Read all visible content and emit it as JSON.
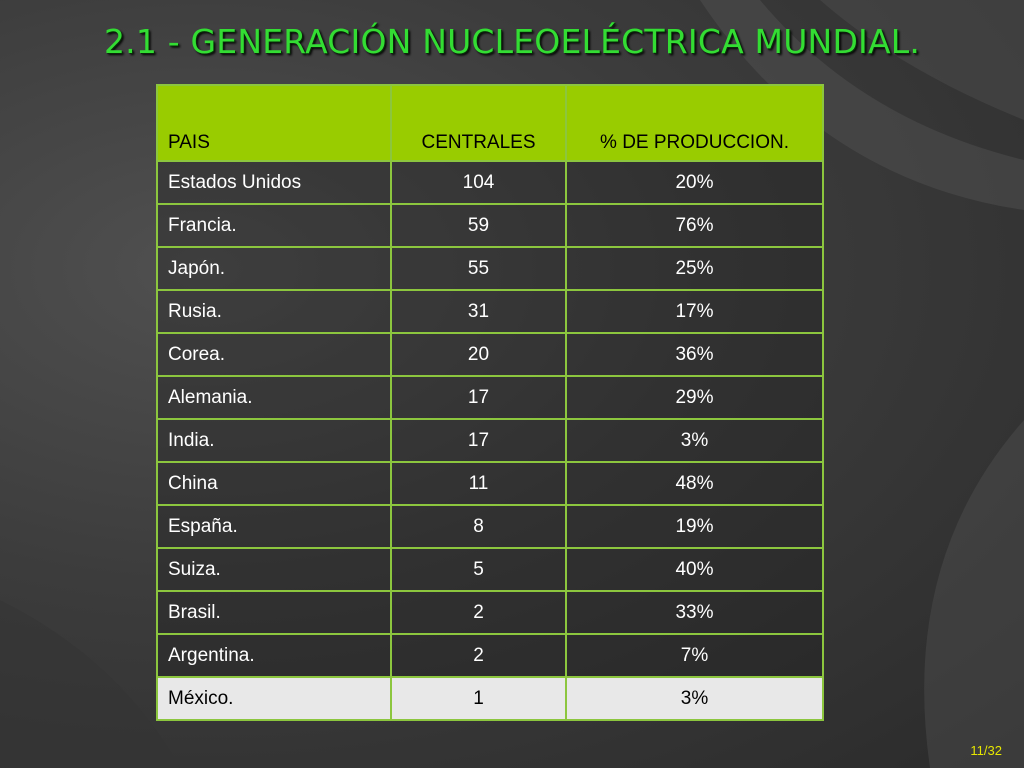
{
  "slide": {
    "title": "2.1 - GENERACIÓN NUCLEOELÉCTRICA MUNDIAL.",
    "page_number": "11/32"
  },
  "table": {
    "headers": {
      "pais": "PAIS",
      "centrales": "CENTRALES",
      "produccion": "% DE PRODUCCION."
    },
    "rows": [
      {
        "pais": "Estados Unidos",
        "centrales": "104",
        "produccion": "20%"
      },
      {
        "pais": "Francia.",
        "centrales": "59",
        "produccion": "76%"
      },
      {
        "pais": "Japón.",
        "centrales": "55",
        "produccion": "25%"
      },
      {
        "pais": "Rusia.",
        "centrales": "31",
        "produccion": "17%"
      },
      {
        "pais": "Corea.",
        "centrales": "20",
        "produccion": "36%"
      },
      {
        "pais": "Alemania.",
        "centrales": "17",
        "produccion": "29%"
      },
      {
        "pais": "India.",
        "centrales": "17",
        "produccion": "3%"
      },
      {
        "pais": "China",
        "centrales": "11",
        "produccion": "48%"
      },
      {
        "pais": "España.",
        "centrales": "8",
        "produccion": "19%"
      },
      {
        "pais": "Suiza.",
        "centrales": "5",
        "produccion": "40%"
      },
      {
        "pais": "Brasil.",
        "centrales": "2",
        "produccion": "33%"
      },
      {
        "pais": "Argentina.",
        "centrales": "2",
        "produccion": "7%"
      },
      {
        "pais": "México.",
        "centrales": "1",
        "produccion": "3%"
      }
    ],
    "highlighted_row": "México."
  },
  "colors": {
    "title": "#33dd33",
    "header_bg": "#99cc00",
    "border": "#8cc63e",
    "highlight_bg": "#e8e8e8",
    "page_number": "#e6e600"
  }
}
